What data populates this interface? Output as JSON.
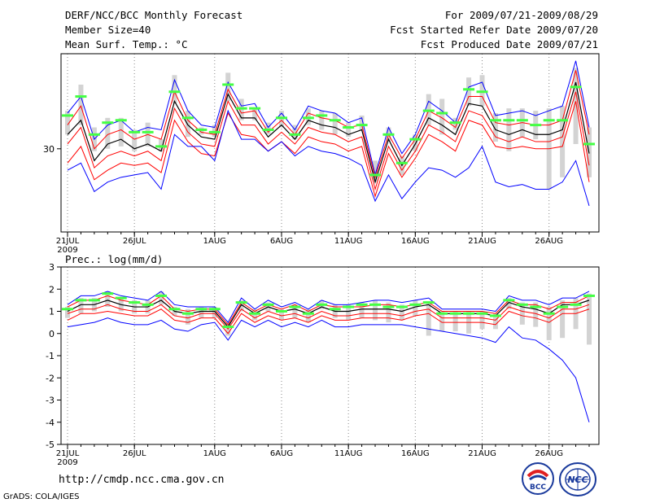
{
  "header": {
    "title": "DERF/NCC/BCC Monthly Forecast",
    "member_size": "Member Size=40",
    "variable": "Mean Surf. Temp.: °C",
    "fcst_period": "For 2009/07/21-2009/08/29",
    "fcst_started": "Fcst Started Refer Date 2009/07/20",
    "fcst_produced": "Fcst Produced Date 2009/07/21"
  },
  "footer": {
    "url": "http://cmdp.ncc.cma.gov.cn",
    "grads": "GrADS: COLA/IGES",
    "logo_bcc": "BCC",
    "logo_ncc": "NCC"
  },
  "chart_data": [
    {
      "type": "line",
      "title": "Mean Surf. Temp.: °C",
      "ylabel": "°C",
      "ylim": [
        26.5,
        34.0
      ],
      "y_ticks": [
        30
      ],
      "x": [
        1,
        2,
        3,
        4,
        5,
        6,
        7,
        8,
        9,
        10,
        11,
        12,
        13,
        14,
        15,
        16,
        17,
        18,
        19,
        20,
        21,
        22,
        23,
        24,
        25,
        26,
        27,
        28,
        29,
        30,
        31,
        32,
        33,
        34,
        35,
        36,
        37,
        38,
        39,
        40
      ],
      "x_ticks": [
        {
          "x": 1,
          "label": "21JUL"
        },
        {
          "x": 6,
          "label": "26JUL"
        },
        {
          "x": 12,
          "label": "1AUG"
        },
        {
          "x": 17,
          "label": "6AUG"
        },
        {
          "x": 22,
          "label": "11AUG"
        },
        {
          "x": 27,
          "label": "16AUG"
        },
        {
          "x": 32,
          "label": "21AUG"
        },
        {
          "x": 37,
          "label": "26AUG"
        }
      ],
      "x_tick_sublabel": "2009",
      "series": [
        {
          "name": "max",
          "color": "#0000ff",
          "values": [
            31.5,
            32.2,
            30.4,
            31.0,
            31.2,
            30.7,
            30.9,
            30.8,
            32.9,
            31.6,
            31.0,
            30.9,
            32.8,
            31.8,
            31.9,
            30.9,
            31.5,
            30.8,
            31.8,
            31.6,
            31.5,
            31.1,
            31.3,
            28.9,
            30.9,
            29.8,
            30.6,
            32.0,
            31.6,
            31.1,
            32.6,
            32.8,
            31.4,
            31.5,
            31.6,
            31.4,
            31.6,
            31.8,
            33.7,
            30.9
          ]
        },
        {
          "name": "p75",
          "color": "#ff0000",
          "values": [
            31.0,
            31.8,
            30.0,
            30.6,
            30.8,
            30.4,
            30.6,
            30.4,
            32.4,
            31.2,
            30.7,
            30.6,
            32.5,
            31.5,
            31.6,
            30.7,
            31.2,
            30.6,
            31.5,
            31.3,
            31.2,
            30.9,
            31.0,
            28.8,
            30.6,
            29.6,
            30.4,
            31.6,
            31.3,
            30.9,
            32.2,
            32.2,
            31.1,
            31.0,
            31.1,
            31.0,
            31.0,
            31.2,
            33.3,
            30.6
          ]
        },
        {
          "name": "mean",
          "color": "#000000",
          "values": [
            30.6,
            31.2,
            29.5,
            30.2,
            30.4,
            30.0,
            30.2,
            29.9,
            32.0,
            31.0,
            30.5,
            30.4,
            32.3,
            31.3,
            31.3,
            30.5,
            31.0,
            30.4,
            31.2,
            31.0,
            30.9,
            30.6,
            30.8,
            28.6,
            30.4,
            29.3,
            30.2,
            31.3,
            31.0,
            30.6,
            31.9,
            31.8,
            30.8,
            30.6,
            30.8,
            30.6,
            30.6,
            30.8,
            32.8,
            29.8
          ]
        },
        {
          "name": "p25",
          "color": "#ff0000",
          "values": [
            30.2,
            30.9,
            29.2,
            29.7,
            29.9,
            29.7,
            29.9,
            29.5,
            31.7,
            30.7,
            30.2,
            30.1,
            32.0,
            31.0,
            31.0,
            30.2,
            30.7,
            30.2,
            30.9,
            30.7,
            30.6,
            30.3,
            30.5,
            28.3,
            30.1,
            29.1,
            29.9,
            31.0,
            30.7,
            30.3,
            31.6,
            31.4,
            30.5,
            30.3,
            30.5,
            30.3,
            30.3,
            30.5,
            32.4,
            29.3
          ]
        },
        {
          "name": "p10",
          "color": "#ff0000",
          "values": [
            29.4,
            30.1,
            28.7,
            29.1,
            29.4,
            29.3,
            29.4,
            29.0,
            31.2,
            30.3,
            29.8,
            29.7,
            31.5,
            30.6,
            30.5,
            29.9,
            30.3,
            29.8,
            30.5,
            30.3,
            30.2,
            29.9,
            30.1,
            28.0,
            29.8,
            28.8,
            29.6,
            30.6,
            30.3,
            29.9,
            31.2,
            31.0,
            30.1,
            30.0,
            30.1,
            30.0,
            30.0,
            30.1,
            32.0,
            28.6
          ]
        },
        {
          "name": "min",
          "color": "#0000ff",
          "values": [
            29.1,
            29.4,
            28.2,
            28.6,
            28.8,
            28.9,
            29.0,
            28.3,
            30.6,
            30.1,
            30.1,
            29.5,
            31.6,
            30.4,
            30.4,
            29.9,
            30.3,
            29.7,
            30.1,
            29.9,
            29.8,
            29.6,
            29.3,
            27.8,
            28.9,
            27.9,
            28.6,
            29.2,
            29.1,
            28.8,
            29.2,
            30.1,
            28.6,
            28.4,
            28.5,
            28.3,
            28.3,
            28.6,
            29.5,
            27.6
          ]
        }
      ],
      "bars": {
        "color": "#d3d3d3",
        "low": [
          30.6,
          31.0,
          29.9,
          30.0,
          30.1,
          29.9,
          30.1,
          29.9,
          31.9,
          30.5,
          30.6,
          30.5,
          32.0,
          31.2,
          31.2,
          30.6,
          30.9,
          30.4,
          31.0,
          30.8,
          30.6,
          30.5,
          30.8,
          28.6,
          30.3,
          28.9,
          29.9,
          31.0,
          30.6,
          30.8,
          31.8,
          31.8,
          30.3,
          29.9,
          30.5,
          30.4,
          28.3,
          28.8,
          30.2,
          28.8
        ],
        "high": [
          31.6,
          32.7,
          30.9,
          31.3,
          31.3,
          30.8,
          31.1,
          30.4,
          33.1,
          31.6,
          30.9,
          31.0,
          33.2,
          32.1,
          31.7,
          31.1,
          31.6,
          31.0,
          31.7,
          31.6,
          31.5,
          31.1,
          31.4,
          29.5,
          30.9,
          29.7,
          30.6,
          32.3,
          32.1,
          31.3,
          33.0,
          33.1,
          31.5,
          31.7,
          31.7,
          31.6,
          31.7,
          31.8,
          33.4,
          30.9
        ]
      },
      "forecast_marks": {
        "color": "#44ff44",
        "values": [
          31.4,
          32.2,
          30.6,
          31.1,
          31.2,
          30.7,
          30.7,
          30.1,
          32.4,
          31.3,
          30.8,
          30.7,
          32.7,
          31.7,
          31.7,
          30.8,
          31.3,
          30.6,
          31.3,
          31.4,
          31.2,
          30.9,
          31.0,
          28.9,
          30.6,
          29.4,
          30.4,
          31.6,
          31.5,
          31.1,
          32.5,
          32.4,
          31.2,
          31.2,
          31.2,
          31.0,
          31.2,
          31.2,
          32.6,
          30.2
        ]
      }
    },
    {
      "type": "line",
      "title": "Prec.: log(mm/d)",
      "ylabel": "log(mm/d)",
      "ylim": [
        -5,
        3
      ],
      "y_ticks": [
        3,
        2,
        1,
        0,
        -1,
        -2,
        -3,
        -4,
        -5
      ],
      "x": [
        1,
        2,
        3,
        4,
        5,
        6,
        7,
        8,
        9,
        10,
        11,
        12,
        13,
        14,
        15,
        16,
        17,
        18,
        19,
        20,
        21,
        22,
        23,
        24,
        25,
        26,
        27,
        28,
        29,
        30,
        31,
        32,
        33,
        34,
        35,
        36,
        37,
        38,
        39,
        40
      ],
      "x_ticks": [
        {
          "x": 1,
          "label": "21JUL"
        },
        {
          "x": 6,
          "label": "26JUL"
        },
        {
          "x": 12,
          "label": "1AUG"
        },
        {
          "x": 17,
          "label": "6AUG"
        },
        {
          "x": 22,
          "label": "11AUG"
        },
        {
          "x": 27,
          "label": "16AUG"
        },
        {
          "x": 32,
          "label": "21AUG"
        },
        {
          "x": 37,
          "label": "26AUG"
        }
      ],
      "x_tick_sublabel": "2009",
      "series": [
        {
          "name": "max",
          "color": "#0000ff",
          "values": [
            1.3,
            1.7,
            1.7,
            1.9,
            1.7,
            1.6,
            1.5,
            1.9,
            1.3,
            1.2,
            1.2,
            1.2,
            0.5,
            1.6,
            1.1,
            1.5,
            1.2,
            1.4,
            1.1,
            1.5,
            1.3,
            1.3,
            1.4,
            1.5,
            1.5,
            1.4,
            1.5,
            1.6,
            1.1,
            1.1,
            1.1,
            1.1,
            1.0,
            1.7,
            1.5,
            1.5,
            1.3,
            1.6,
            1.6,
            1.9
          ]
        },
        {
          "name": "p75",
          "color": "#ff0000",
          "values": [
            1.2,
            1.5,
            1.5,
            1.7,
            1.5,
            1.4,
            1.3,
            1.7,
            1.1,
            1.0,
            1.1,
            1.1,
            0.4,
            1.4,
            1.0,
            1.3,
            1.1,
            1.3,
            1.0,
            1.3,
            1.2,
            1.2,
            1.2,
            1.3,
            1.3,
            1.2,
            1.3,
            1.4,
            1.0,
            1.0,
            1.0,
            1.0,
            0.9,
            1.5,
            1.3,
            1.3,
            1.1,
            1.4,
            1.4,
            1.7
          ]
        },
        {
          "name": "mean",
          "color": "#000000",
          "values": [
            1.0,
            1.3,
            1.3,
            1.5,
            1.3,
            1.2,
            1.2,
            1.5,
            1.0,
            0.9,
            1.0,
            1.0,
            0.3,
            1.3,
            0.9,
            1.2,
            1.0,
            1.1,
            0.9,
            1.2,
            1.0,
            1.0,
            1.1,
            1.1,
            1.1,
            1.0,
            1.2,
            1.3,
            0.9,
            0.9,
            0.9,
            0.9,
            0.8,
            1.4,
            1.2,
            1.1,
            0.9,
            1.3,
            1.3,
            1.5
          ]
        },
        {
          "name": "p25",
          "color": "#ff0000",
          "values": [
            0.9,
            1.1,
            1.1,
            1.3,
            1.1,
            1.0,
            1.0,
            1.3,
            0.8,
            0.7,
            0.9,
            0.9,
            0.2,
            1.1,
            0.7,
            1.0,
            0.8,
            0.9,
            0.7,
            1.0,
            0.8,
            0.8,
            0.9,
            0.9,
            0.9,
            0.8,
            1.0,
            1.1,
            0.7,
            0.7,
            0.7,
            0.7,
            0.6,
            1.2,
            1.0,
            0.9,
            0.7,
            1.1,
            1.1,
            1.3
          ]
        },
        {
          "name": "p10",
          "color": "#ff0000",
          "values": [
            0.6,
            0.9,
            0.9,
            1.0,
            0.9,
            0.8,
            0.8,
            1.1,
            0.6,
            0.5,
            0.7,
            0.7,
            0.0,
            0.9,
            0.5,
            0.8,
            0.6,
            0.7,
            0.5,
            0.8,
            0.6,
            0.6,
            0.7,
            0.7,
            0.7,
            0.6,
            0.8,
            0.9,
            0.5,
            0.5,
            0.5,
            0.5,
            0.4,
            1.0,
            0.8,
            0.7,
            0.5,
            0.9,
            0.9,
            1.1
          ]
        },
        {
          "name": "min",
          "color": "#0000ff",
          "values": [
            0.3,
            0.4,
            0.5,
            0.7,
            0.5,
            0.4,
            0.4,
            0.6,
            0.2,
            0.1,
            0.4,
            0.5,
            -0.3,
            0.6,
            0.3,
            0.6,
            0.3,
            0.5,
            0.3,
            0.6,
            0.3,
            0.3,
            0.4,
            0.4,
            0.4,
            0.4,
            0.3,
            0.2,
            0.1,
            0.0,
            -0.1,
            -0.2,
            -0.4,
            0.3,
            -0.2,
            -0.3,
            -0.7,
            -1.2,
            -2.0,
            -4.0
          ]
        }
      ],
      "bars": {
        "color": "#d3d3d3",
        "low": [
          0.7,
          0.9,
          1.0,
          1.2,
          1.0,
          0.9,
          0.9,
          1.3,
          0.8,
          0.4,
          0.7,
          0.7,
          -0.1,
          1.0,
          0.6,
          1.0,
          0.6,
          0.7,
          0.5,
          1.1,
          0.7,
          0.6,
          0.7,
          0.6,
          0.5,
          0.6,
          0.8,
          -0.1,
          0.1,
          0.1,
          0.0,
          0.2,
          0.2,
          1.1,
          0.4,
          0.3,
          -0.3,
          -0.2,
          0.2,
          -0.5
        ],
        "high": [
          1.2,
          1.6,
          1.6,
          1.9,
          1.6,
          1.5,
          1.5,
          1.9,
          1.2,
          1.1,
          1.2,
          1.2,
          0.5,
          1.5,
          1.1,
          1.4,
          1.1,
          1.3,
          1.1,
          1.5,
          1.3,
          1.3,
          1.4,
          1.5,
          1.4,
          1.3,
          1.5,
          1.4,
          1.0,
          1.0,
          1.0,
          1.0,
          0.9,
          1.6,
          1.4,
          1.4,
          1.2,
          1.5,
          1.6,
          1.8
        ]
      },
      "forecast_marks": {
        "color": "#44ff44",
        "values": [
          1.1,
          1.5,
          1.5,
          1.8,
          1.6,
          1.4,
          1.3,
          1.7,
          1.1,
          0.9,
          1.1,
          1.1,
          0.3,
          1.4,
          0.9,
          1.3,
          1.0,
          1.2,
          0.9,
          1.3,
          1.1,
          1.2,
          1.3,
          1.3,
          1.2,
          1.2,
          1.3,
          1.4,
          0.9,
          0.9,
          0.9,
          0.9,
          0.8,
          1.5,
          1.3,
          1.2,
          0.9,
          1.2,
          1.3,
          1.7
        ]
      }
    }
  ],
  "panels": [
    {
      "frame_color": "#000000",
      "grid_color": "#888888"
    },
    {
      "frame_color": "#000000",
      "grid_color": "#888888"
    }
  ]
}
